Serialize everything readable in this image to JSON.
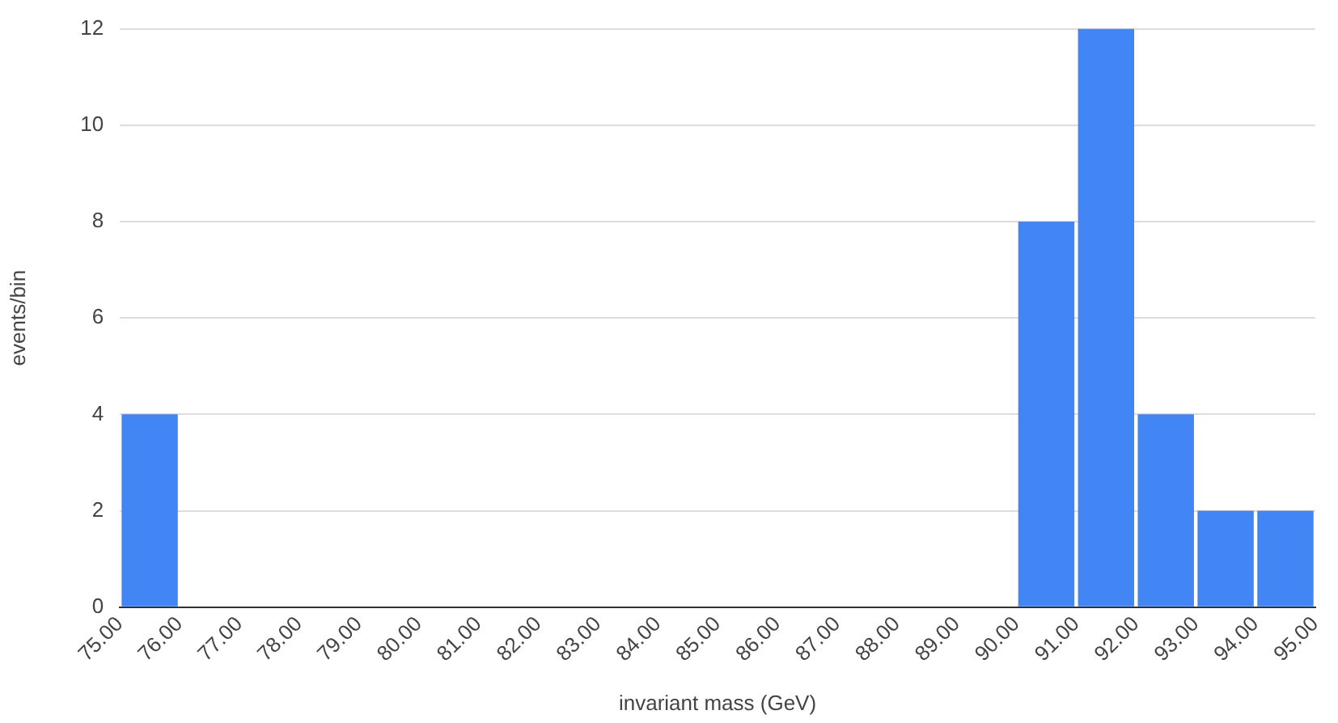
{
  "chart_data": {
    "type": "histogram",
    "xlabel": "invariant mass (GeV)",
    "ylabel": "events/bin",
    "bins": [
      75,
      76,
      77,
      78,
      79,
      80,
      81,
      82,
      83,
      84,
      85,
      86,
      87,
      88,
      89,
      90,
      91,
      92,
      93,
      94,
      95
    ],
    "values": [
      4,
      0,
      0,
      0,
      0,
      0,
      0,
      0,
      0,
      0,
      0,
      0,
      0,
      0,
      0,
      8,
      12,
      4,
      2,
      2
    ],
    "color": "#4285f4",
    "xlim": [
      75,
      95
    ],
    "xticks": [
      {
        "value": 75,
        "label": "75.00"
      },
      {
        "value": 76,
        "label": "76.00"
      },
      {
        "value": 77,
        "label": "77.00"
      },
      {
        "value": 78,
        "label": "78.00"
      },
      {
        "value": 79,
        "label": "79.00"
      },
      {
        "value": 80,
        "label": "80.00"
      },
      {
        "value": 81,
        "label": "81.00"
      },
      {
        "value": 82,
        "label": "82.00"
      },
      {
        "value": 83,
        "label": "83.00"
      },
      {
        "value": 84,
        "label": "84.00"
      },
      {
        "value": 85,
        "label": "85.00"
      },
      {
        "value": 86,
        "label": "86.00"
      },
      {
        "value": 87,
        "label": "87.00"
      },
      {
        "value": 88,
        "label": "88.00"
      },
      {
        "value": 89,
        "label": "89.00"
      },
      {
        "value": 90,
        "label": "90.00"
      },
      {
        "value": 91,
        "label": "91.00"
      },
      {
        "value": 92,
        "label": "92.00"
      },
      {
        "value": 93,
        "label": "93.00"
      },
      {
        "value": 94,
        "label": "94.00"
      },
      {
        "value": 95,
        "label": "95.00"
      }
    ],
    "ylim": [
      0,
      12
    ],
    "yticks": [
      0,
      2,
      4,
      6,
      8,
      10,
      12
    ],
    "grid": "y"
  }
}
